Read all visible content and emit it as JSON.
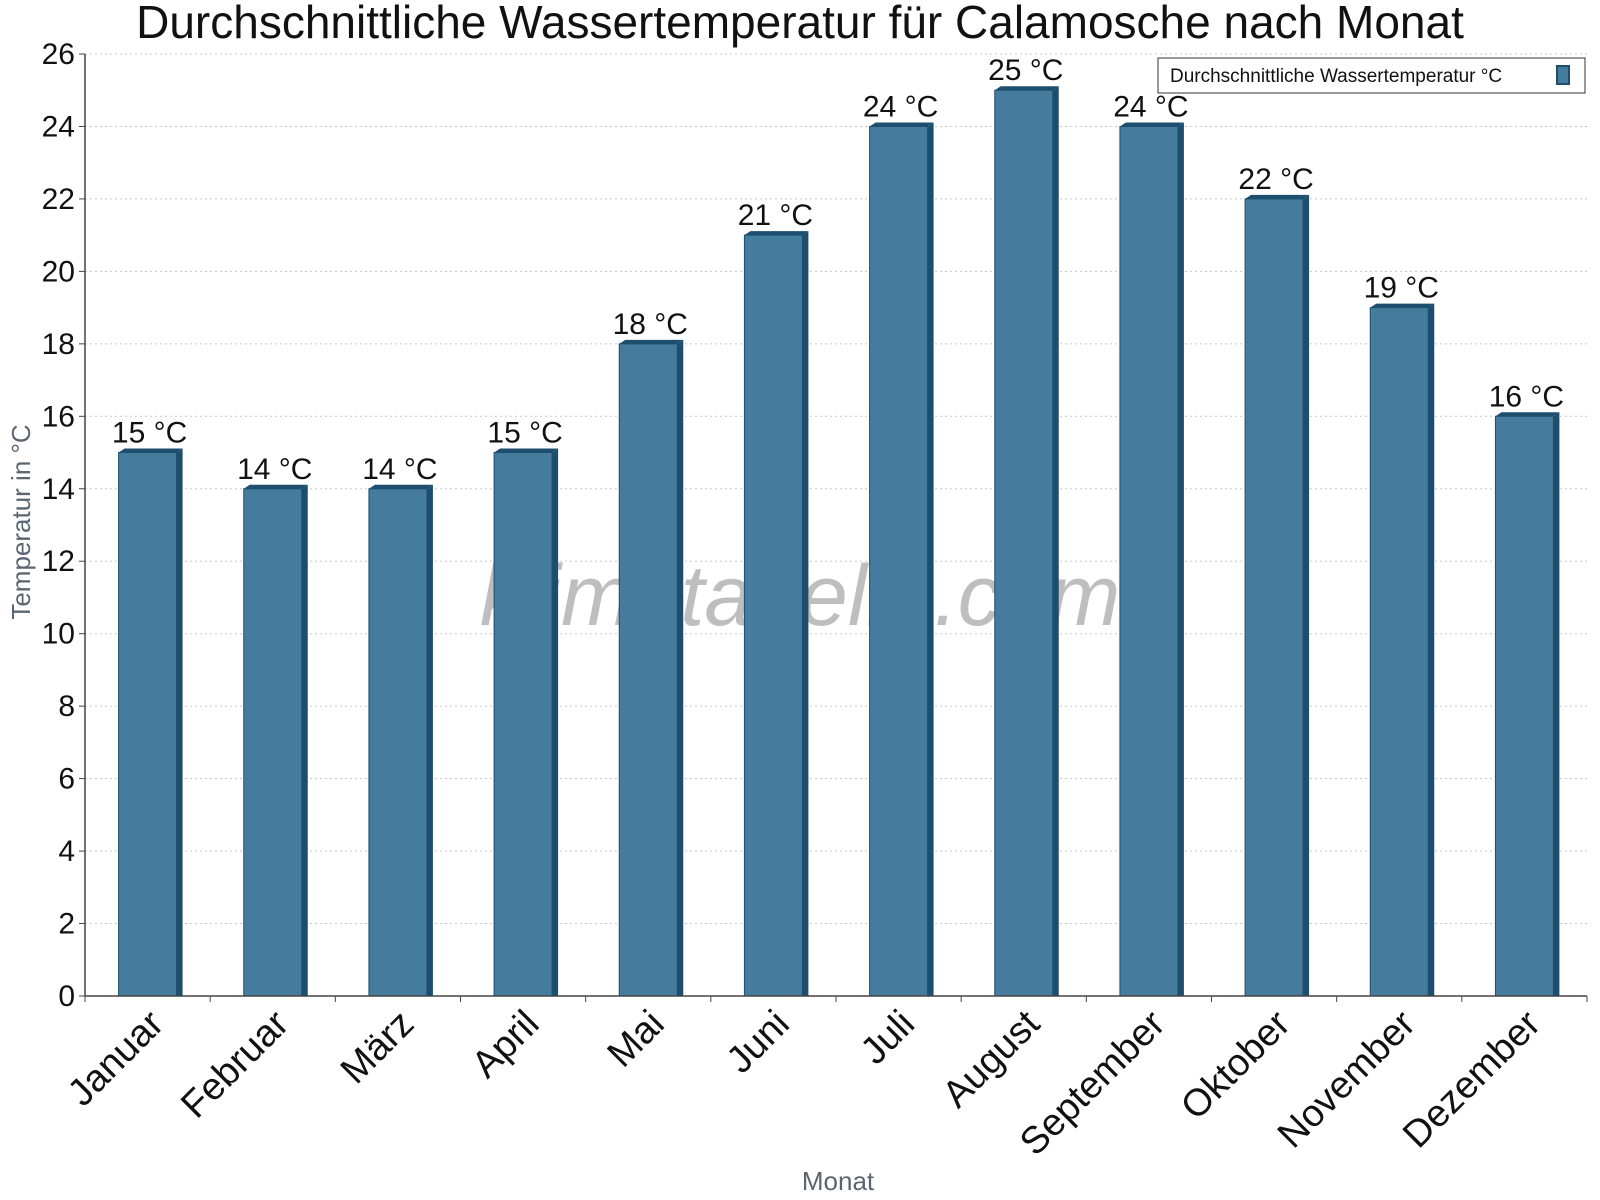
{
  "watermark": "klimatabelle.com",
  "colors": {
    "bar_face": "#457b9d",
    "bar_side": "#1d4e6e",
    "grid": "#c8c8c8",
    "axis": "#444444"
  },
  "chart_data": {
    "type": "bar",
    "title": "Durchschnittliche Wassertemperatur für Calamosche nach Monat",
    "xlabel": "Monat",
    "ylabel": "Temperatur in °C",
    "categories": [
      "Januar",
      "Februar",
      "März",
      "April",
      "Mai",
      "Juni",
      "Juli",
      "August",
      "September",
      "Oktober",
      "November",
      "Dezember"
    ],
    "series": [
      {
        "name": "Durchschnittliche Wassertemperatur °C",
        "values": [
          15,
          14,
          14,
          15,
          18,
          21,
          24,
          25,
          24,
          22,
          19,
          16
        ],
        "labels": [
          "15 °C",
          "14 °C",
          "14 °C",
          "15 °C",
          "18 °C",
          "21 °C",
          "24 °C",
          "25 °C",
          "24 °C",
          "22 °C",
          "19 °C",
          "16 °C"
        ]
      }
    ],
    "ylim": [
      0,
      26
    ],
    "yticks": [
      0,
      2,
      4,
      6,
      8,
      10,
      12,
      14,
      16,
      18,
      20,
      22,
      24,
      26
    ],
    "grid": "horizontal dotted",
    "legend": "top-right"
  }
}
